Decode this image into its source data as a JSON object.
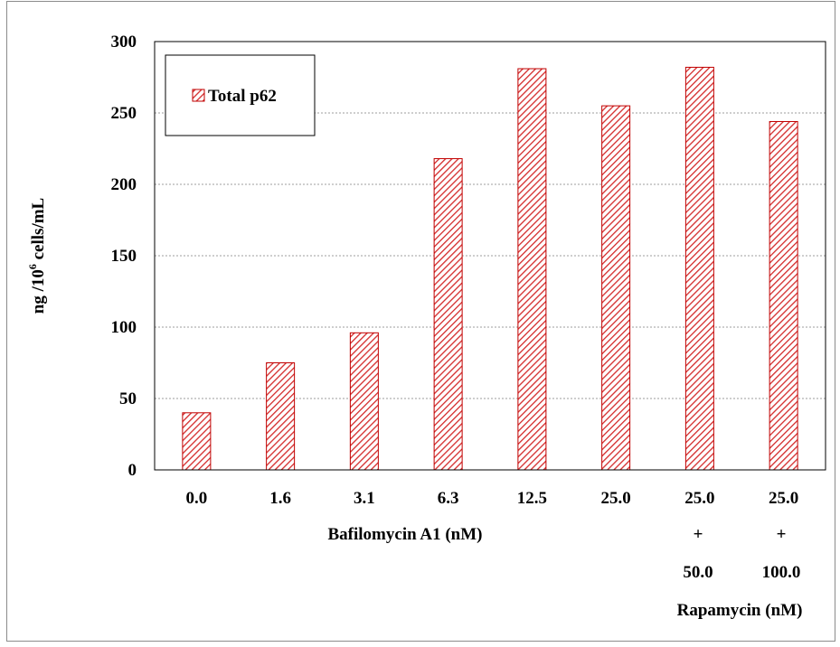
{
  "chart_data": {
    "type": "bar",
    "categories": [
      "0.0",
      "1.6",
      "3.1",
      "6.3",
      "12.5",
      "25.0",
      "25.0",
      "25.0"
    ],
    "series": [
      {
        "name": "Total p62",
        "values": [
          40,
          75,
          96,
          218,
          281,
          255,
          282,
          244
        ]
      }
    ],
    "xlabel": "Bafilomycin A1 (nM)",
    "ylabel_main": "ng /10",
    "ylabel_sup": "6",
    "ylabel_tail": " cells/mL",
    "ylim": [
      0,
      300
    ],
    "yticks": [
      "0",
      "50",
      "100",
      "150",
      "200",
      "250",
      "300"
    ],
    "grid": true,
    "legend_position": "top-left",
    "rapamycin": {
      "plus_labels": [
        "+",
        "+"
      ],
      "dose_labels": [
        "50.0",
        "100.0"
      ],
      "title": "Rapamycin (nM)"
    },
    "colors": {
      "bar_stroke": "#c00000",
      "bar_hatch": "#d42a2a",
      "grid": "#7f7f7f"
    }
  }
}
